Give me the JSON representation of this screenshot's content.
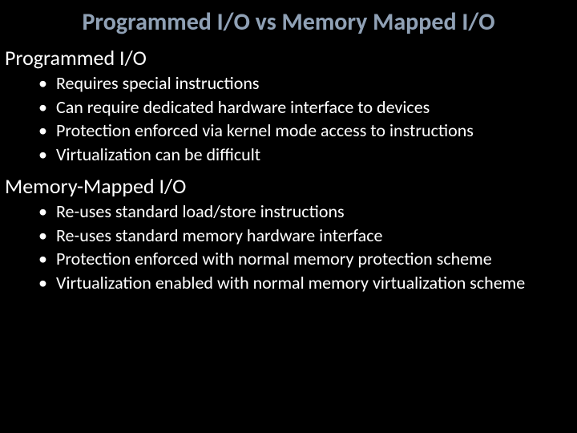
{
  "title": "Programmed I/O vs Memory Mapped I/O",
  "section1": {
    "heading": "Programmed I/O",
    "items": [
      "Requires special instructions",
      "Can require dedicated hardware interface to devices",
      "Protection enforced via kernel mode access to instructions",
      "Virtualization can be difficult"
    ]
  },
  "section2": {
    "heading": "Memory-Mapped I/O",
    "items": [
      "Re-uses standard load/store instructions",
      "Re-uses standard memory hardware interface",
      "Protection enforced with normal memory protection scheme",
      "Virtualization enabled with normal memory virtualization scheme"
    ]
  },
  "colors": {
    "background": "#000000",
    "title_base": "#0a2e5c",
    "text": "#ffffff"
  },
  "fonts": {
    "title_size_pt": 30,
    "heading_size_pt": 26,
    "body_size_pt": 22,
    "family": "Calibri"
  }
}
